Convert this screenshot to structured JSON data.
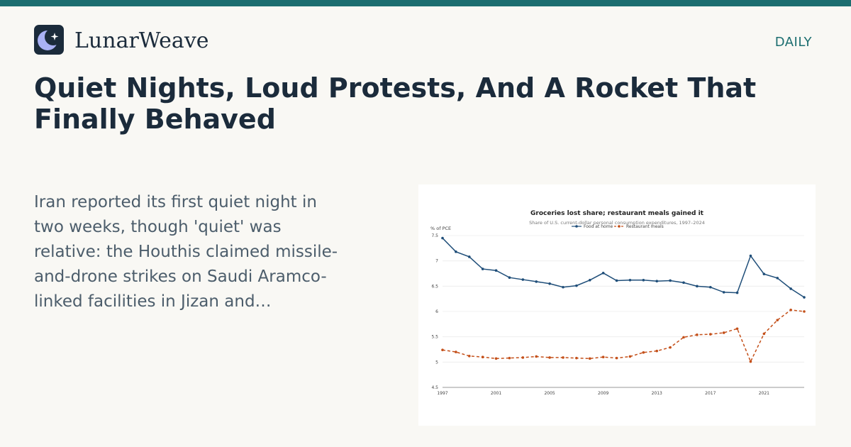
{
  "brand": {
    "name": "LunarWeave",
    "section": "DAILY",
    "logo_icon": "moon-star-icon"
  },
  "article": {
    "headline": "Quiet Nights, Loud Protests, And A Rocket That Finally Behaved",
    "excerpt": "Iran reported its first quiet night in two weeks, though 'quiet' was relative: the Houthis claimed missile-and-drone strikes on Saudi Aramco-linked facilities in Jizan and…"
  },
  "colors": {
    "accent": "#1c6e70",
    "food_at_home": "#1f4e79",
    "restaurant_meals": "#c4501a",
    "text_dark": "#1b2b3b"
  },
  "chart_data": {
    "type": "line",
    "title": "Groceries lost share; restaurant meals gained it",
    "subtitle": "Share of U.S. current-dollar personal consumption expenditures, 1997–2024",
    "ylabel": "% of PCE",
    "xlabel": "",
    "ylim": [
      4.5,
      7.5
    ],
    "xlim": [
      1997,
      2024
    ],
    "yticks": [
      "4.5",
      "5",
      "5.5",
      "6",
      "6.5",
      "7",
      "7.5"
    ],
    "xticks": [
      "1997",
      "2001",
      "2005",
      "2009",
      "2013",
      "2017",
      "2021"
    ],
    "grid": "horizontal",
    "legend": "top-center",
    "x": [
      1997,
      1998,
      1999,
      2000,
      2001,
      2002,
      2003,
      2004,
      2005,
      2006,
      2007,
      2008,
      2009,
      2010,
      2011,
      2012,
      2013,
      2014,
      2015,
      2016,
      2017,
      2018,
      2019,
      2020,
      2021,
      2022,
      2023,
      2024
    ],
    "series": [
      {
        "name": "Food at home",
        "style": "solid",
        "values": [
          7.45,
          7.18,
          7.08,
          6.84,
          6.81,
          6.67,
          6.63,
          6.59,
          6.55,
          6.48,
          6.51,
          6.62,
          6.76,
          6.61,
          6.62,
          6.62,
          6.6,
          6.61,
          6.57,
          6.5,
          6.48,
          6.38,
          6.37,
          7.1,
          6.74,
          6.66,
          6.45,
          6.28
        ]
      },
      {
        "name": "Restaurant meals",
        "style": "dashed",
        "values": [
          5.24,
          5.2,
          5.12,
          5.1,
          5.07,
          5.08,
          5.09,
          5.11,
          5.09,
          5.09,
          5.08,
          5.07,
          5.1,
          5.08,
          5.11,
          5.19,
          5.22,
          5.29,
          5.49,
          5.54,
          5.55,
          5.58,
          5.66,
          5.01,
          5.56,
          5.83,
          6.03,
          6.0
        ]
      }
    ]
  }
}
